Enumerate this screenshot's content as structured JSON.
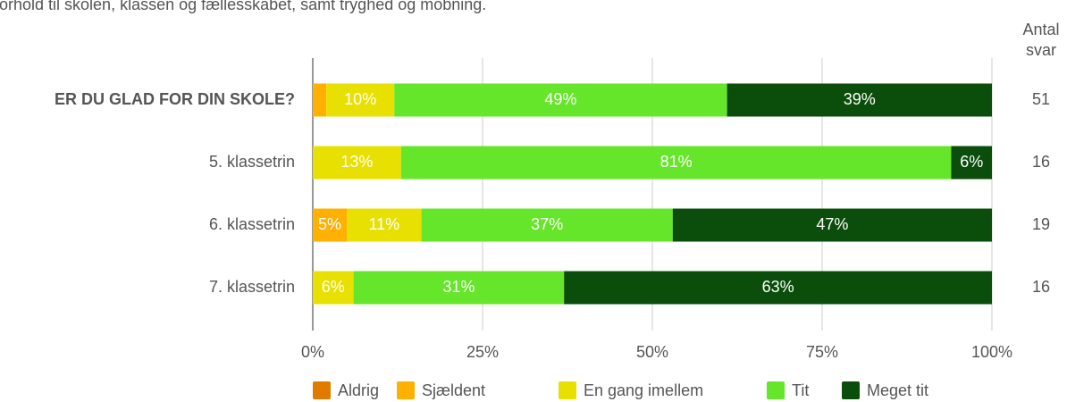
{
  "chart_data": {
    "type": "stacked-barh",
    "subtitle": "forhold til skolen, klassen og fællesskabet, samt tryghed og mobning.",
    "count_header": [
      "Antal",
      "svar"
    ],
    "categories": [
      "ER DU GLAD FOR DIN SKOLE?",
      "5. klassetrin",
      "6. klassetrin",
      "7. klassetrin"
    ],
    "counts": [
      51,
      16,
      19,
      16
    ],
    "series": [
      {
        "name": "Aldrig",
        "color": "#e07b00",
        "values": [
          0,
          0,
          0,
          0
        ],
        "value_labels": [
          null,
          null,
          null,
          null
        ]
      },
      {
        "name": "Sjældent",
        "color": "#ffb000",
        "values": [
          2,
          0,
          5,
          0
        ],
        "value_labels": [
          null,
          null,
          "5%",
          null
        ]
      },
      {
        "name": "En gang imellem",
        "color": "#e8e000",
        "values": [
          10,
          13,
          11,
          6
        ],
        "value_labels": [
          "10%",
          "13%",
          "11%",
          "6%"
        ]
      },
      {
        "name": "Tit",
        "color": "#66e62a",
        "values": [
          49,
          81,
          37,
          31
        ],
        "value_labels": [
          "49%",
          "81%",
          "37%",
          "31%"
        ]
      },
      {
        "name": "Meget tit",
        "color": "#0b4d0b",
        "values": [
          39,
          6,
          47,
          63
        ],
        "value_labels": [
          "39%",
          "6%",
          "47%",
          "63%"
        ]
      }
    ],
    "xlim": [
      0,
      100
    ],
    "xticks": [
      {
        "value": 0,
        "label": "0%"
      },
      {
        "value": 25,
        "label": "25%"
      },
      {
        "value": 50,
        "label": "50%"
      },
      {
        "value": 75,
        "label": "75%"
      },
      {
        "value": 100,
        "label": "100%"
      }
    ],
    "grid": true,
    "legend": "bottom"
  }
}
